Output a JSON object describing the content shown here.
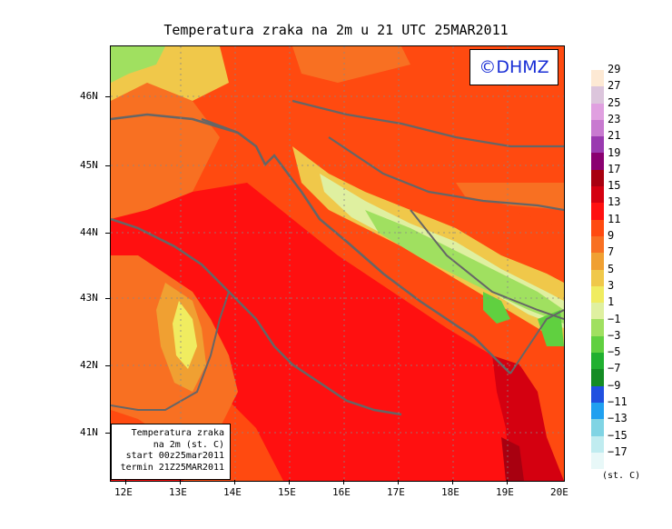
{
  "title": "Temperatura zraka na 2m u 21 UTC 25MAR2011",
  "logo": "©DHMZ",
  "info_box": [
    "Temperatura zraka",
    "na 2m (st. C)",
    "start 00z25mar2011",
    "termin 21Z25MAR2011"
  ],
  "lat_labels": [
    "46N",
    "45N",
    "44N",
    "43N",
    "42N",
    "41N"
  ],
  "lon_labels": [
    "12E",
    "13E",
    "14E",
    "15E",
    "16E",
    "17E",
    "18E",
    "19E",
    "20E"
  ],
  "colorbar": {
    "labels": [
      "29",
      "27",
      "25",
      "23",
      "21",
      "19",
      "17",
      "15",
      "13",
      "11",
      "9",
      "7",
      "5",
      "3",
      "1",
      "−1",
      "−3",
      "−5",
      "−7",
      "−9",
      "−11",
      "−13",
      "−15",
      "−17"
    ],
    "colors": [
      "#fde9d4",
      "#dcc5dc",
      "#e0a0e0",
      "#c87ad0",
      "#9a3ab0",
      "#8a0070",
      "#a80010",
      "#d40010",
      "#ff1010",
      "#ff4a10",
      "#f87022",
      "#f0a032",
      "#f0c84a",
      "#f0ec60",
      "#dff0a0",
      "#a0e060",
      "#60d040",
      "#20b030",
      "#148c24",
      "#2050e0",
      "#20a0f0",
      "#80d4e4",
      "#c0ecf0",
      "#e8f8f8"
    ],
    "unit": "(st. C)"
  }
}
